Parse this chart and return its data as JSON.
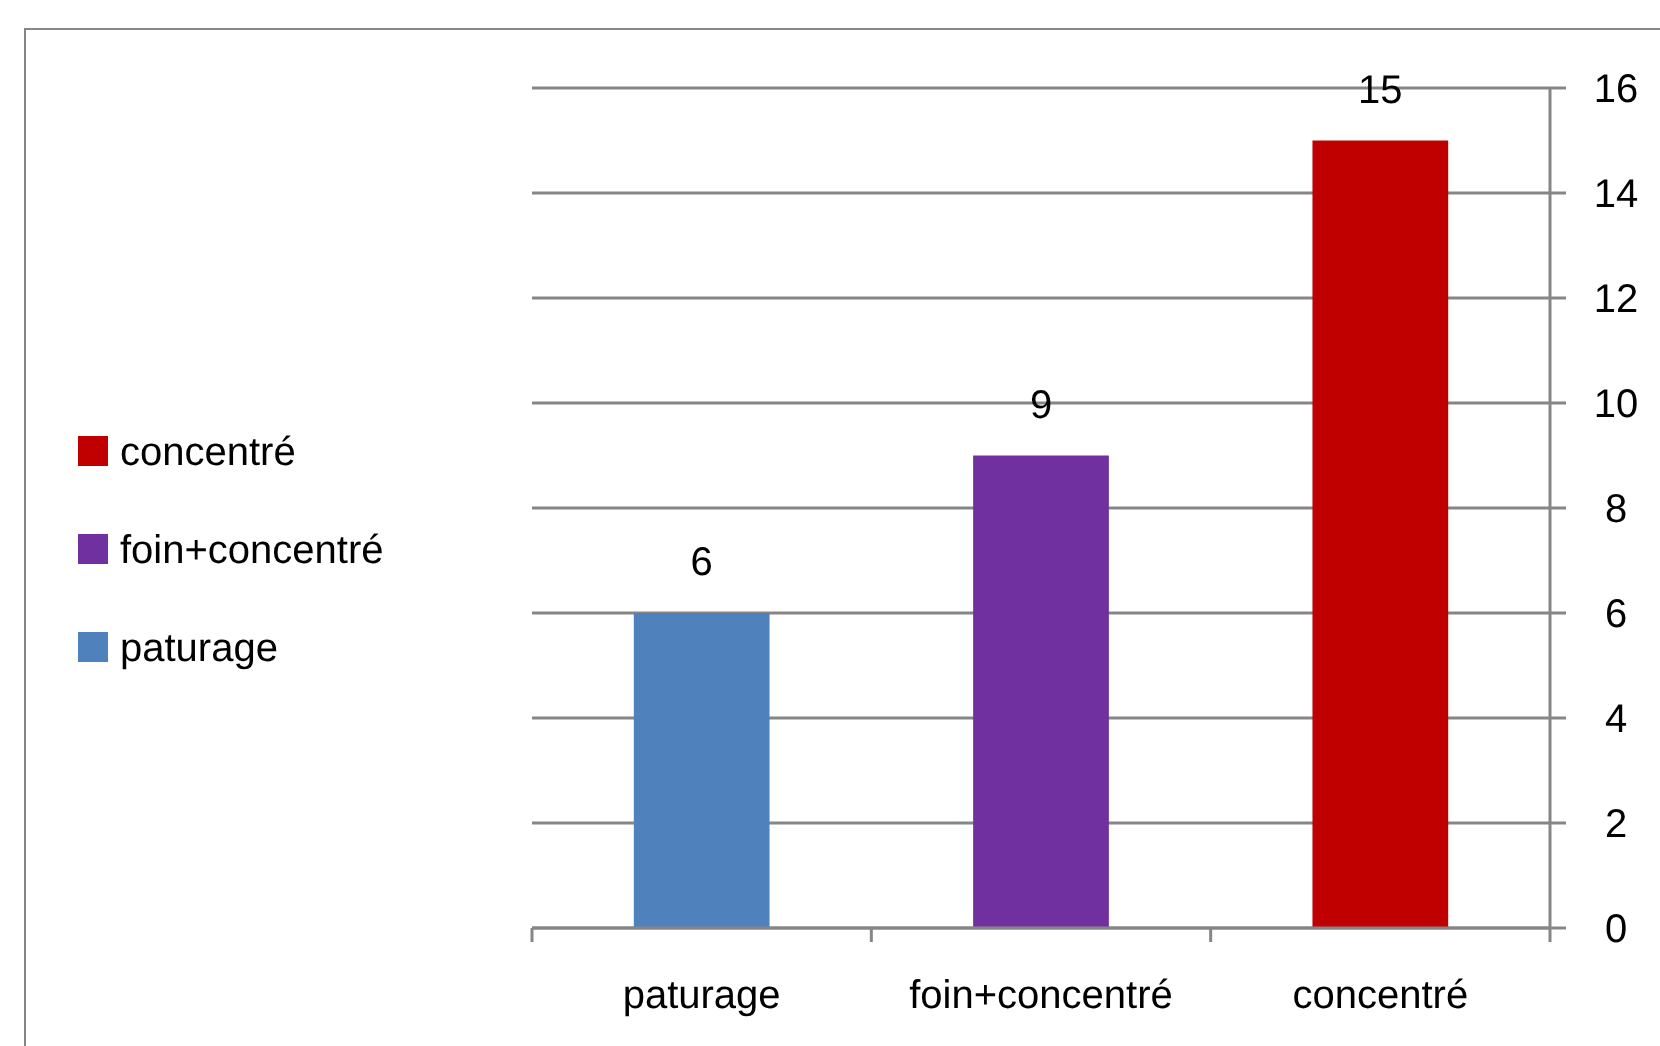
{
  "chart_data": {
    "type": "bar",
    "stacked": true,
    "categories": [
      "paturage",
      "foin+concentré",
      "concentré"
    ],
    "series": [
      {
        "name": "paturage",
        "color": "#4f81bd",
        "values": [
          6,
          null,
          null
        ]
      },
      {
        "name": "foin+concentré",
        "color": "#7030a0",
        "values": [
          null,
          9,
          null
        ]
      },
      {
        "name": "concentré",
        "color": "#c00000",
        "values": [
          null,
          null,
          15
        ]
      }
    ],
    "ylim": [
      0,
      16
    ],
    "yticks": [
      0,
      2,
      4,
      6,
      8,
      10,
      12,
      14,
      16
    ],
    "grid": "y",
    "legend": "left",
    "data_labels": true
  }
}
